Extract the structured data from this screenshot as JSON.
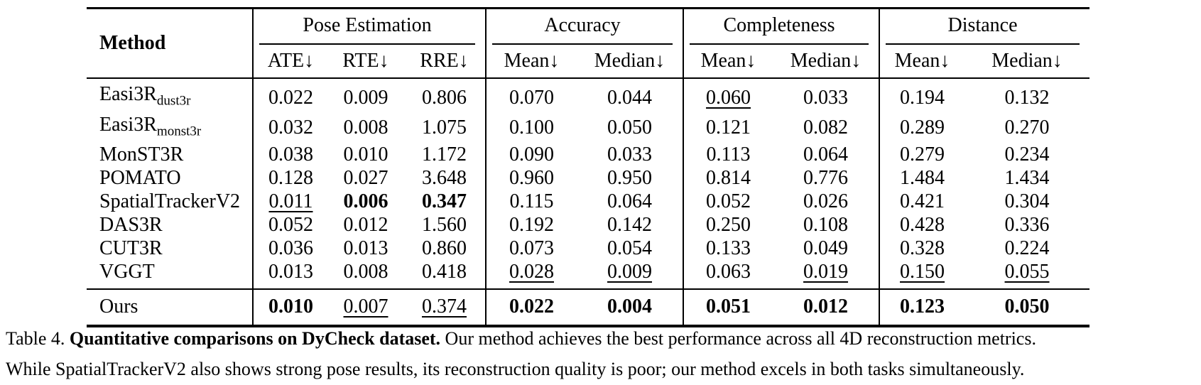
{
  "table": {
    "method_header": "Method",
    "group_headers": [
      {
        "label": "Pose Estimation",
        "span": 3
      },
      {
        "label": "Accuracy",
        "span": 2
      },
      {
        "label": "Completeness",
        "span": 2
      },
      {
        "label": "Distance",
        "span": 2
      }
    ],
    "sub_headers": [
      "ATE↓",
      "RTE↓",
      "RRE↓",
      "Mean↓",
      "Median↓",
      "Mean↓",
      "Median↓",
      "Mean↓",
      "Median↓"
    ],
    "rows": [
      {
        "method": "Easi3R",
        "method_sub": "dust3r",
        "values": [
          "0.022",
          "0.009",
          "0.806",
          "0.070",
          "0.044",
          "0.060",
          "0.033",
          "0.194",
          "0.132"
        ],
        "styles": [
          "n",
          "n",
          "n",
          "n",
          "n",
          "u",
          "n",
          "n",
          "n"
        ]
      },
      {
        "method": "Easi3R",
        "method_sub": "monst3r",
        "values": [
          "0.032",
          "0.008",
          "1.075",
          "0.100",
          "0.050",
          "0.121",
          "0.082",
          "0.289",
          "0.270"
        ],
        "styles": [
          "n",
          "n",
          "n",
          "n",
          "n",
          "n",
          "n",
          "n",
          "n"
        ]
      },
      {
        "method": "MonST3R",
        "method_sub": "",
        "values": [
          "0.038",
          "0.010",
          "1.172",
          "0.090",
          "0.033",
          "0.113",
          "0.064",
          "0.279",
          "0.234"
        ],
        "styles": [
          "n",
          "n",
          "n",
          "n",
          "n",
          "n",
          "n",
          "n",
          "n"
        ]
      },
      {
        "method": "POMATO",
        "method_sub": "",
        "values": [
          "0.128",
          "0.027",
          "3.648",
          "0.960",
          "0.950",
          "0.814",
          "0.776",
          "1.484",
          "1.434"
        ],
        "styles": [
          "n",
          "n",
          "n",
          "n",
          "n",
          "n",
          "n",
          "n",
          "n"
        ]
      },
      {
        "method": "SpatialTrackerV2",
        "method_sub": "",
        "values": [
          "0.011",
          "0.006",
          "0.347",
          "0.115",
          "0.064",
          "0.052",
          "0.026",
          "0.421",
          "0.304"
        ],
        "styles": [
          "u",
          "b",
          "b",
          "n",
          "n",
          "n",
          "n",
          "n",
          "n"
        ]
      },
      {
        "method": "DAS3R",
        "method_sub": "",
        "values": [
          "0.052",
          "0.012",
          "1.560",
          "0.192",
          "0.142",
          "0.250",
          "0.108",
          "0.428",
          "0.336"
        ],
        "styles": [
          "n",
          "n",
          "n",
          "n",
          "n",
          "n",
          "n",
          "n",
          "n"
        ]
      },
      {
        "method": "CUT3R",
        "method_sub": "",
        "values": [
          "0.036",
          "0.013",
          "0.860",
          "0.073",
          "0.054",
          "0.133",
          "0.049",
          "0.328",
          "0.224"
        ],
        "styles": [
          "n",
          "n",
          "n",
          "n",
          "n",
          "n",
          "n",
          "n",
          "n"
        ]
      },
      {
        "method": "VGGT",
        "method_sub": "",
        "values": [
          "0.013",
          "0.008",
          "0.418",
          "0.028",
          "0.009",
          "0.063",
          "0.019",
          "0.150",
          "0.055"
        ],
        "styles": [
          "n",
          "n",
          "n",
          "u",
          "u",
          "n",
          "u",
          "u",
          "u"
        ]
      }
    ],
    "ours_row": {
      "method": "Ours",
      "method_sub": "",
      "values": [
        "0.010",
        "0.007",
        "0.374",
        "0.022",
        "0.004",
        "0.051",
        "0.012",
        "0.123",
        "0.050"
      ],
      "styles": [
        "b",
        "u",
        "u",
        "b",
        "b",
        "b",
        "b",
        "b",
        "b"
      ]
    }
  },
  "caption": {
    "label": "Table 4.",
    "title": "Quantitative comparisons on DyCheck dataset.",
    "line1_rest": "Our method achieves the best performance across all 4D reconstruction metrics.",
    "line2": "While SpatialTrackerV2 also shows strong pose results, its reconstruction quality is poor; our method excels in both tasks simultaneously."
  }
}
